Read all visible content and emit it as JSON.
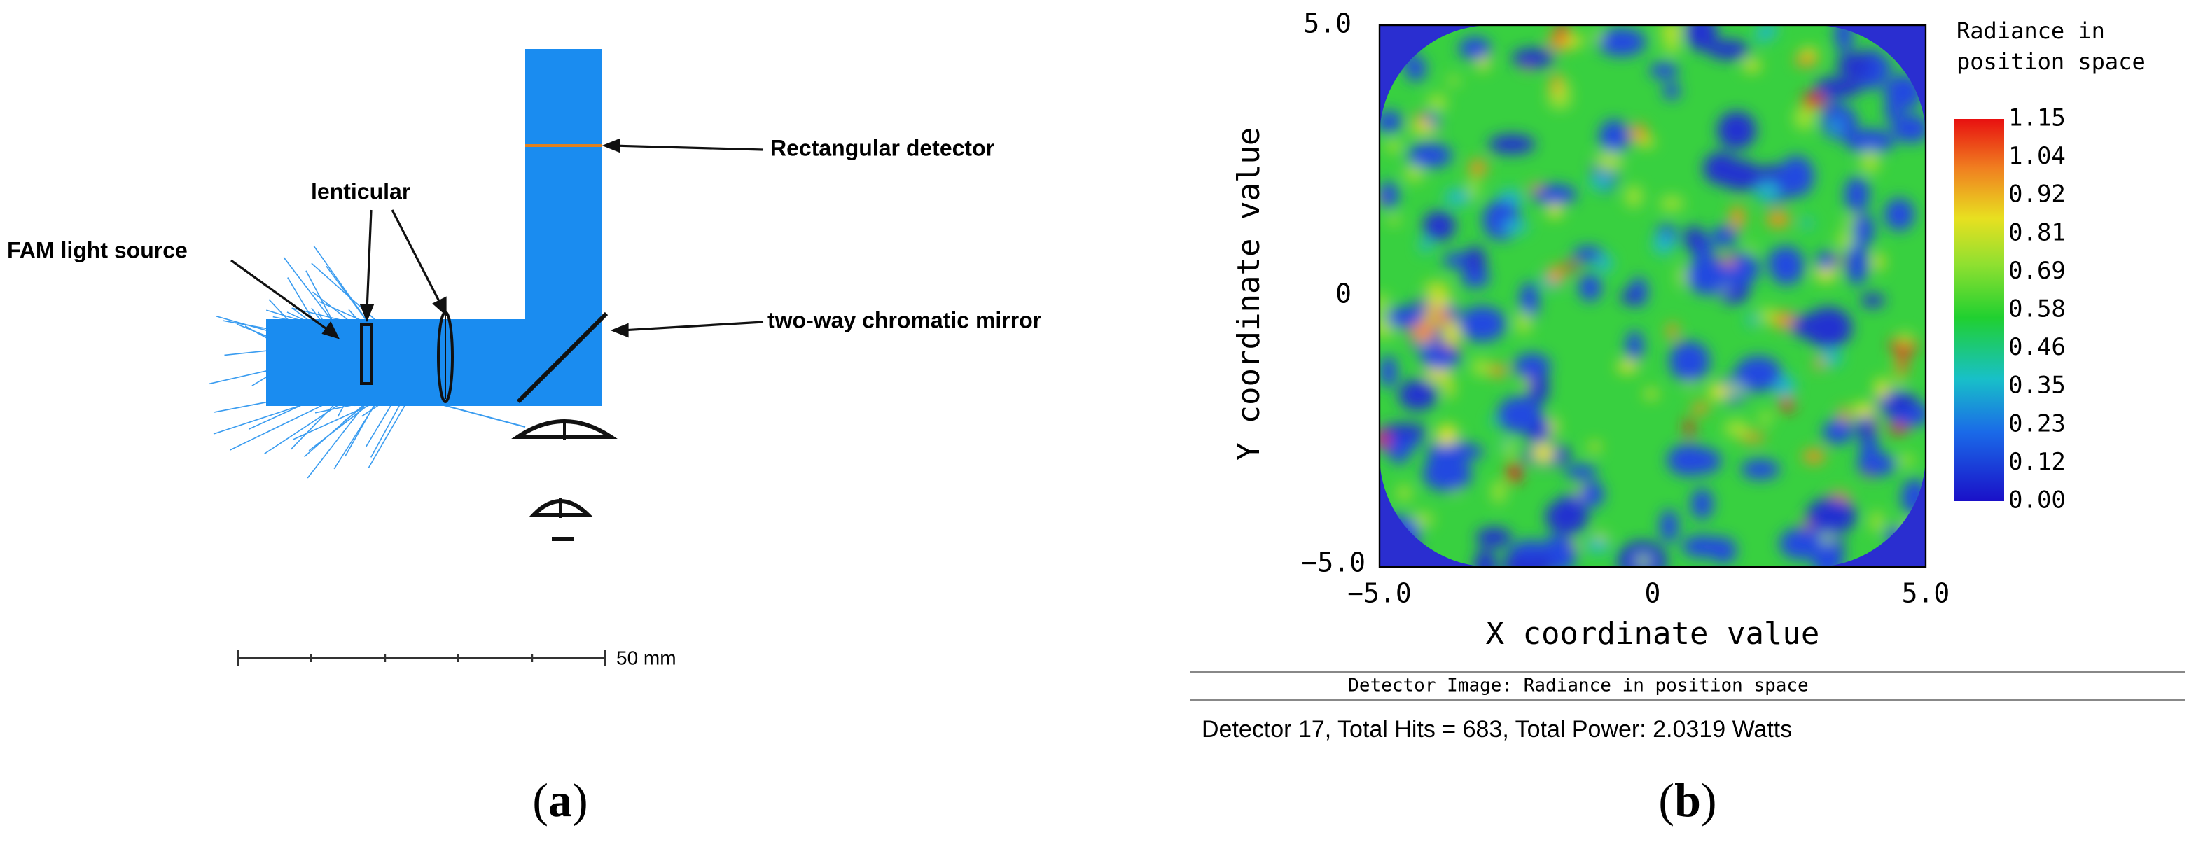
{
  "panel_a": {
    "labels": {
      "source": "FAM light source",
      "lenticular": "lenticular",
      "detector": "Rectangular detector",
      "mirror": "two-way chromatic mirror"
    },
    "scale_bar": "50 mm",
    "caption": [
      "(",
      "a",
      ")"
    ]
  },
  "panel_b": {
    "colorbar_title": [
      "Radiance in",
      "position space"
    ],
    "colorbar_ticks": [
      "1.15",
      "1.04",
      "0.92",
      "0.81",
      "0.69",
      "0.58",
      "0.46",
      "0.35",
      "0.23",
      "0.12",
      "0.00"
    ],
    "y_label": "Y coordinate value",
    "x_label": "X coordinate value",
    "y_ticks": [
      "5.0",
      "0",
      "−5.0"
    ],
    "x_ticks": [
      "−5.0",
      "0",
      "5.0"
    ],
    "window_title": "Detector Image: Radiance in position space",
    "status": "Detector 17, Total Hits = 683, Total Power: 2.0319 Watts",
    "caption": [
      "(",
      "b",
      ")"
    ]
  }
}
